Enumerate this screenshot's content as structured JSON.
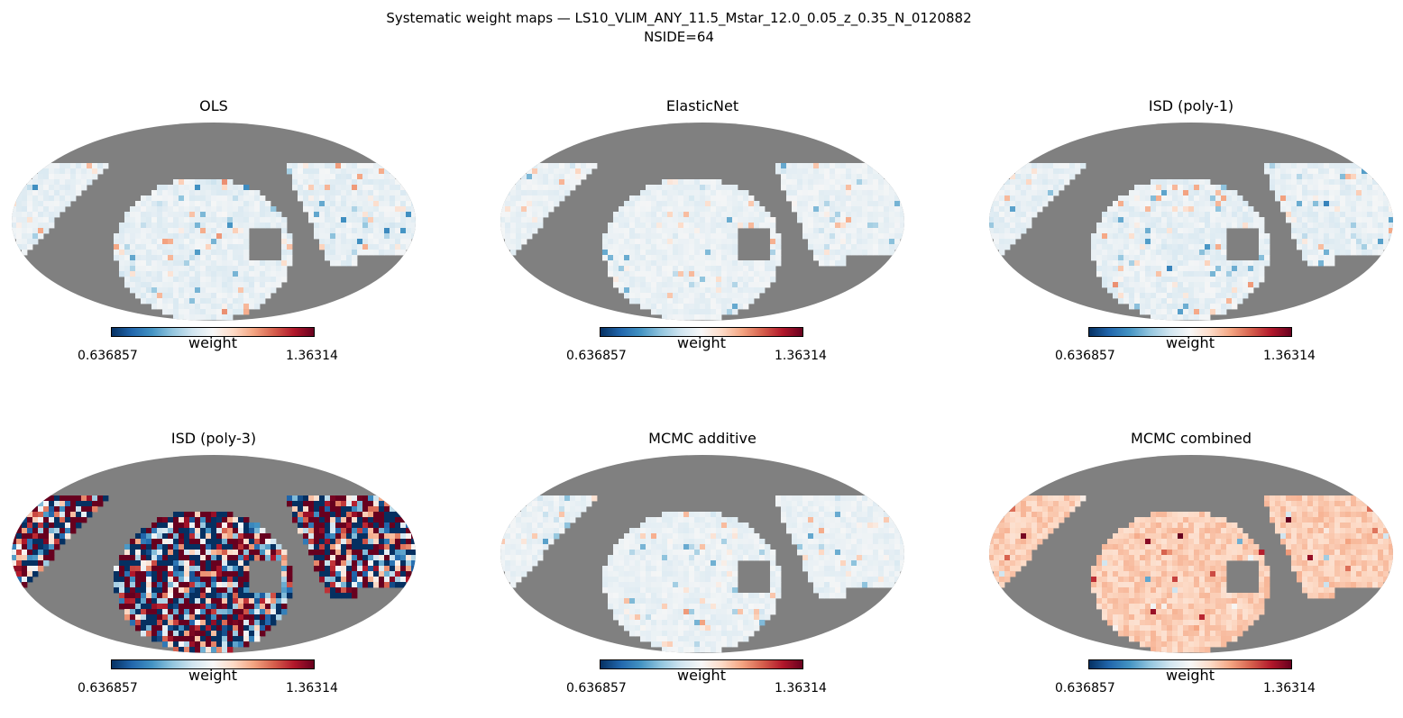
{
  "figure": {
    "title_line1": "Systematic weight maps — LS10_VLIM_ANY_11.5_Mstar_12.0_0.05_z_0.35_N_0120882",
    "title_line2": "NSIDE=64"
  },
  "colors": {
    "masked": "#808080",
    "cmap": [
      "#053061",
      "#2166ac",
      "#4393c3",
      "#92c5de",
      "#d1e5f0",
      "#f7f7f7",
      "#fddbc7",
      "#f4a582",
      "#d6604d",
      "#b2182b",
      "#67001f"
    ]
  },
  "chart_data": [
    {
      "type": "heatmap",
      "projection": "mollweide",
      "title": "OLS",
      "colorbar": {
        "label": "weight",
        "min_label": "0.636857",
        "max_label": "1.36314",
        "cmap": "RdBu_r"
      },
      "pattern": {
        "mean": 0.97,
        "spread": 0.025,
        "blobs": 0.1
      }
    },
    {
      "type": "heatmap",
      "projection": "mollweide",
      "title": "ElasticNet",
      "colorbar": {
        "label": "weight",
        "min_label": "0.636857",
        "max_label": "1.36314",
        "cmap": "RdBu_r"
      },
      "pattern": {
        "mean": 0.975,
        "spread": 0.02,
        "blobs": 0.08
      }
    },
    {
      "type": "heatmap",
      "projection": "mollweide",
      "title": "ISD (poly-1)",
      "colorbar": {
        "label": "weight",
        "min_label": "0.636857",
        "max_label": "1.36314",
        "cmap": "RdBu_r"
      },
      "pattern": {
        "mean": 0.97,
        "spread": 0.025,
        "blobs": 0.1
      }
    },
    {
      "type": "heatmap",
      "projection": "mollweide",
      "title": "ISD (poly-3)",
      "colorbar": {
        "label": "weight",
        "min_label": "0.636857",
        "max_label": "1.36314",
        "cmap": "RdBu_r"
      },
      "pattern": {
        "mean": 1.02,
        "spread": 0.35,
        "blobs": 0.6
      }
    },
    {
      "type": "heatmap",
      "projection": "mollweide",
      "title": "MCMC additive",
      "colorbar": {
        "label": "weight",
        "min_label": "0.636857",
        "max_label": "1.36314",
        "cmap": "RdBu_r"
      },
      "pattern": {
        "mean": 0.975,
        "spread": 0.02,
        "blobs": 0.08
      }
    },
    {
      "type": "heatmap",
      "projection": "mollweide",
      "title": "MCMC combined",
      "colorbar": {
        "label": "weight",
        "min_label": "0.636857",
        "max_label": "1.36314",
        "cmap": "RdBu_r"
      },
      "pattern": {
        "mean": 1.09,
        "spread": 0.035,
        "blobs": 0.05
      }
    }
  ]
}
